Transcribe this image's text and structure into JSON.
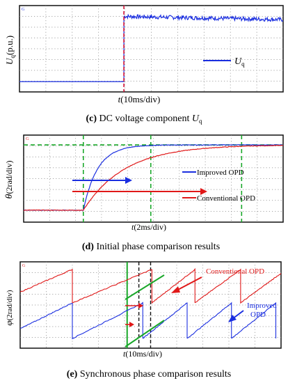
{
  "chart_data": [
    {
      "type": "line",
      "panel": "c",
      "ylabel": "U_q (p.u.)",
      "ylabel_main": "U",
      "ylabel_sub": "q",
      "ylabel_rest": "(p.u.)",
      "xlabel": "t(10ms/div)",
      "xlabel_italic": "t",
      "xlabel_rest": "(10ms/div)",
      "legend": [
        {
          "name_main": "U",
          "name_sub": "q",
          "color": "#1a2ee0"
        }
      ],
      "caption_bold": "(c)",
      "caption_text": " DC voltage component ",
      "caption_var_main": "U",
      "caption_var_sub": "q",
      "x_div_range": [
        0,
        10
      ],
      "y_div_range": [
        0,
        8
      ],
      "series": [
        {
          "name": "U_q",
          "color": "#1a2ee0",
          "x": [
            0,
            3.96,
            3.96,
            10
          ],
          "y": [
            0.95,
            0.95,
            7.0,
            6.7
          ]
        }
      ],
      "markers": [
        {
          "type": "vertical-dashed",
          "x": 3.96,
          "color": "#d4143a"
        }
      ]
    },
    {
      "type": "line",
      "panel": "d",
      "ylabel_main": "θ",
      "ylabel_rest": "(2rad/div)",
      "xlabel_italic": "t",
      "xlabel_rest": "(2ms/div)",
      "legend": [
        {
          "name": "Improved OPD",
          "color": "#1a2ee0"
        },
        {
          "name": "Conventional OPD",
          "color": "#e01818"
        }
      ],
      "caption_bold": "(d)",
      "caption_text": " Initial phase comparison results",
      "x_div_range": [
        0,
        10
      ],
      "y_div_range": [
        0,
        8
      ],
      "series": [
        {
          "name": "Improved OPD",
          "color": "#1a2ee0",
          "start_x": 2.3,
          "low": 1.1,
          "high": 7.1,
          "tau": 0.55
        },
        {
          "name": "Conventional OPD",
          "color": "#e01818",
          "start_x": 2.3,
          "low": 1.1,
          "high": 7.1,
          "tau": 1.6
        }
      ],
      "markers": [
        {
          "type": "vertical-dashed",
          "x": 2.3,
          "color": "#1aa82a"
        },
        {
          "type": "vertical-dashed",
          "x": 4.9,
          "color": "#1aa82a"
        },
        {
          "type": "vertical-dashed",
          "x": 8.4,
          "color": "#1aa82a"
        },
        {
          "type": "horizontal-dashed",
          "y": 7.1,
          "color": "#1aa82a"
        }
      ]
    },
    {
      "type": "line",
      "panel": "e",
      "ylabel_main": "φ",
      "ylabel_rest": "(2rad/div)",
      "xlabel_italic": "t",
      "xlabel_rest": "(10ms/div)",
      "annotations": [
        {
          "text": "Conventional OPD",
          "color": "#e01818"
        },
        {
          "text": "Improved",
          "color": "#1a2ee0"
        },
        {
          "text": "OPD",
          "color": "#1a2ee0"
        }
      ],
      "caption_bold": "(e)",
      "caption_text": " Synchronous phase comparison results",
      "x_div_range": [
        0,
        10
      ],
      "y_div_range": [
        0,
        8
      ],
      "series": [
        {
          "name": "Conventional OPD",
          "color": "#e01818",
          "low": 4.2,
          "high": 7.3,
          "resets": [
            2.0,
            5.05,
            6.7,
            8.45,
            10.2
          ],
          "start_level": 5.2
        },
        {
          "name": "Improved OPD",
          "color": "#1a2ee0",
          "low": 0.9,
          "high": 4.2,
          "resets": [
            2.0,
            4.7,
            6.4,
            8.1,
            9.8
          ],
          "start_level": 1.8
        }
      ],
      "markers": [
        {
          "type": "vertical-solid",
          "x": 4.1,
          "color": "#1aa82a"
        },
        {
          "type": "vertical-dashed",
          "x": 4.55,
          "color": "#111111"
        },
        {
          "type": "vertical-dashed",
          "x": 5.0,
          "color": "#111111"
        }
      ]
    }
  ]
}
